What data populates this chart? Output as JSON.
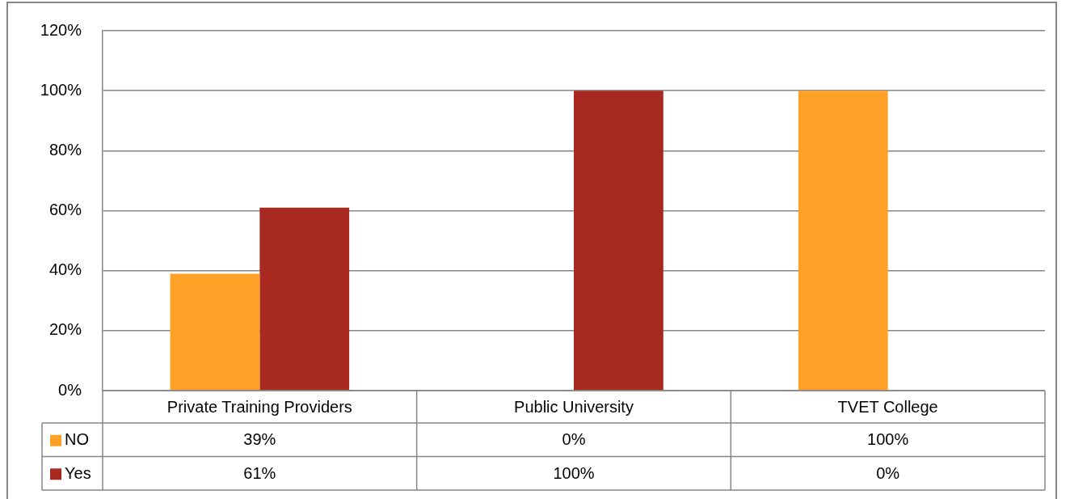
{
  "chart_data": {
    "type": "bar",
    "categories": [
      "Private Training Providers",
      "Public University",
      "TVET College"
    ],
    "series": [
      {
        "name": "NO",
        "color": "#ffa126",
        "values": [
          39,
          0,
          100
        ],
        "value_labels": [
          "39%",
          "0%",
          "100%"
        ]
      },
      {
        "name": "Yes",
        "color": "#a8291f",
        "values": [
          61,
          100,
          0
        ],
        "value_labels": [
          "61%",
          "100%",
          "0%"
        ]
      }
    ],
    "ylim": [
      0,
      120
    ],
    "yticks": [
      {
        "value": 0,
        "label": "0%"
      },
      {
        "value": 20,
        "label": "20%"
      },
      {
        "value": 40,
        "label": "40%"
      },
      {
        "value": 60,
        "label": "60%"
      },
      {
        "value": 80,
        "label": "80%"
      },
      {
        "value": 100,
        "label": "100%"
      },
      {
        "value": 120,
        "label": "120%"
      }
    ],
    "grid": "y",
    "legend": "bottom"
  }
}
